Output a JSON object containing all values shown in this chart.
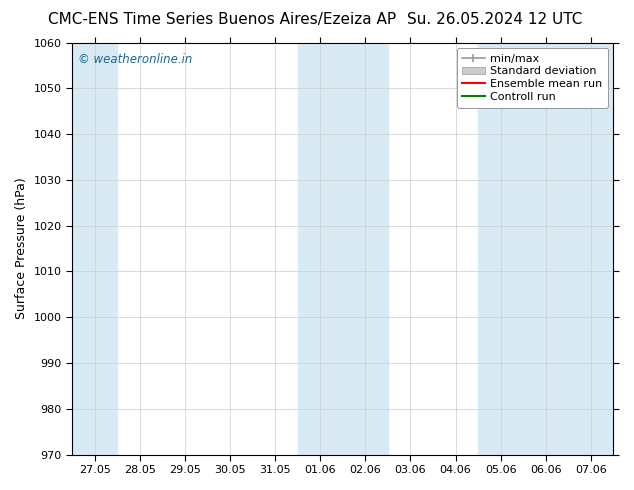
{
  "title": "CMC-ENS Time Series Buenos Aires/Ezeiza AP",
  "title_right": "Su. 26.05.2024 12 UTC",
  "ylabel": "Surface Pressure (hPa)",
  "ylim": [
    970,
    1060
  ],
  "yticks": [
    970,
    980,
    990,
    1000,
    1010,
    1020,
    1030,
    1040,
    1050,
    1060
  ],
  "xtick_positions": [
    0,
    1,
    2,
    3,
    4,
    5,
    6,
    7,
    8,
    9,
    10,
    11
  ],
  "xtick_labels": [
    "27.05",
    "28.05",
    "29.05",
    "30.05",
    "31.05",
    "01.06",
    "02.06",
    "03.06",
    "04.06",
    "05.06",
    "06.06",
    "07.06"
  ],
  "xlim": [
    -0.5,
    11.5
  ],
  "shaded_bands": [
    {
      "x_start": -0.5,
      "x_end": 0.5,
      "color": "#daeaf5"
    },
    {
      "x_start": 4.5,
      "x_end": 6.5,
      "color": "#daeaf5"
    },
    {
      "x_start": 8.5,
      "x_end": 11.5,
      "color": "#daeaf5"
    }
  ],
  "legend_items": [
    {
      "label": "min/max",
      "color": "#aaaaaa",
      "lw": 1.5
    },
    {
      "label": "Standard deviation",
      "color": "#cccccc",
      "lw": 6
    },
    {
      "label": "Ensemble mean run",
      "color": "red",
      "lw": 1.5
    },
    {
      "label": "Controll run",
      "color": "green",
      "lw": 1.5
    }
  ],
  "watermark": "© weatheronline.in",
  "watermark_color": "#1a6699",
  "bg_color": "#ffffff",
  "title_fontsize": 11,
  "axis_label_fontsize": 9,
  "tick_fontsize": 8,
  "legend_fontsize": 8
}
